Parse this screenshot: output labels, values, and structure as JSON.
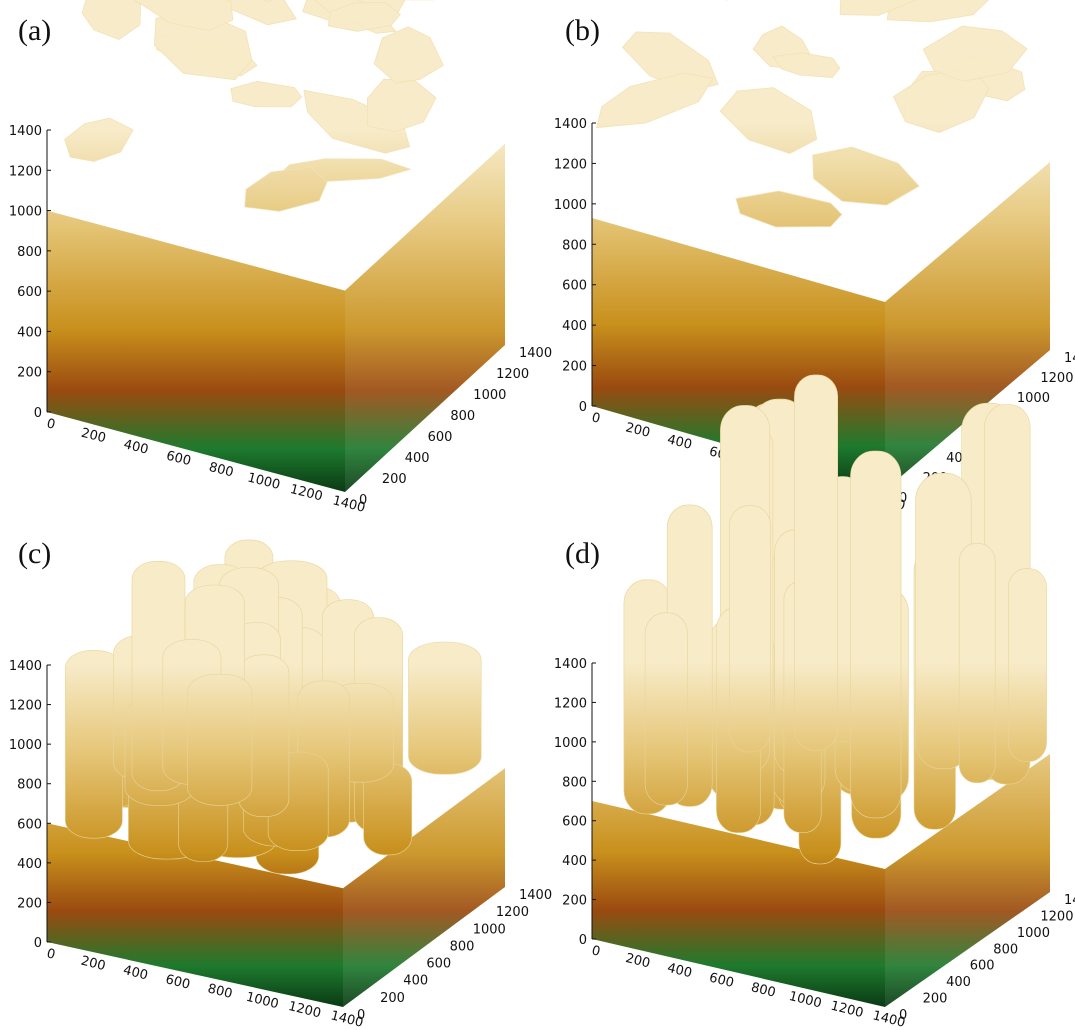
{
  "panels": [
    {
      "label": "(a)",
      "morphology": "tilted-plates",
      "z_max": 1000
    },
    {
      "label": "(b)",
      "morphology": "tilted-plates-sparse",
      "z_max": 930
    },
    {
      "label": "(c)",
      "morphology": "cells",
      "z_max": 600
    },
    {
      "label": "(d)",
      "morphology": "columns",
      "z_max": 700
    }
  ],
  "z_ticks": [
    "0",
    "200",
    "400",
    "600",
    "800",
    "1000",
    "1200",
    "1400"
  ],
  "x_ticks": [
    "0",
    "200",
    "400",
    "600",
    "800",
    "1000",
    "1200",
    "1400"
  ],
  "y_ticks": [
    "0",
    "200",
    "400",
    "600",
    "800",
    "1000",
    "1200",
    "1400"
  ],
  "colors": {
    "green_dark": "#0a3a14",
    "green": "#1e7a2e",
    "brown": "#9a4a10",
    "gold": "#c8901c",
    "tan": "#e6c77a",
    "cream": "#f7ebc8"
  }
}
